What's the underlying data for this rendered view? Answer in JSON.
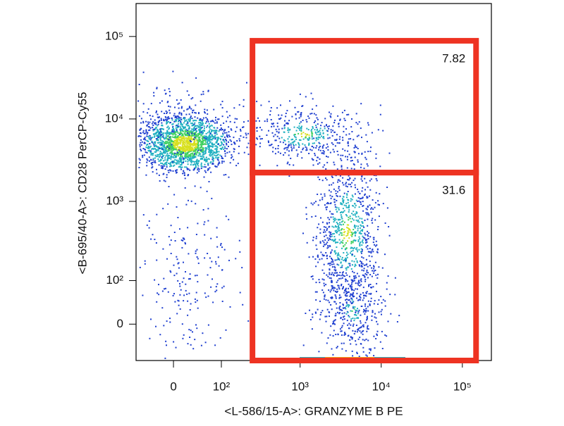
{
  "chart_data": {
    "type": "scatter",
    "x_label": "<L-586/15-A>: GRANZYME B PE",
    "y_label": "<B-695/40-A>: CD28 PerCP-Cy55",
    "xscale": "biexponential",
    "yscale": "biexponential",
    "xlim": [
      -70,
      228000
    ],
    "ylim": [
      -78,
      251000
    ],
    "xticks": [
      0,
      {
        "value": 100,
        "label": "10²"
      },
      {
        "value": 1000,
        "label": "10³"
      },
      {
        "value": 10000,
        "label": "10⁴"
      },
      {
        "value": 100000,
        "label": "10⁵"
      }
    ],
    "yticks": [
      0,
      {
        "value": 100,
        "label": "10²"
      },
      {
        "value": 1000,
        "label": "10³"
      },
      {
        "value": 10000,
        "label": "10⁴"
      },
      {
        "value": 100000,
        "label": "10⁵"
      }
    ],
    "gate_color": "#ee3322",
    "gates": [
      {
        "value": 7.82,
        "x": [
          256,
          147600
        ],
        "y": [
          2236,
          88700
        ]
      },
      {
        "value": 31.6,
        "x": [
          256,
          147600
        ],
        "y": [
          -78,
          2236
        ]
      }
    ]
  }
}
